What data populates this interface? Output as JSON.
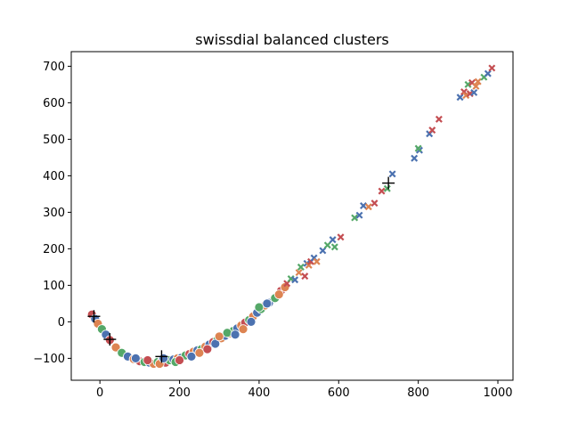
{
  "chart_data": {
    "type": "scatter",
    "title": "swissdial balanced clusters",
    "xlabel": "",
    "ylabel": "",
    "xlim": [
      -72,
      1038
    ],
    "ylim": [
      -160,
      740
    ],
    "xticks": [
      0,
      200,
      400,
      600,
      800,
      1000
    ],
    "yticks": [
      -100,
      0,
      100,
      200,
      300,
      400,
      500,
      600,
      700
    ],
    "xtick_labels": [
      "0",
      "200",
      "400",
      "600",
      "800",
      "1000"
    ],
    "ytick_labels": [
      "−100",
      "0",
      "100",
      "200",
      "300",
      "400",
      "500",
      "600",
      "700"
    ],
    "grid": false,
    "colors": {
      "blue": "#4c72b0",
      "orange": "#dd8452",
      "green": "#55a868",
      "red": "#c44e52"
    },
    "circle_points": [
      {
        "x": -20,
        "y": 20,
        "c": "red"
      },
      {
        "x": -12,
        "y": 8,
        "c": "blue"
      },
      {
        "x": -5,
        "y": -5,
        "c": "orange"
      },
      {
        "x": 5,
        "y": -20,
        "c": "green"
      },
      {
        "x": 15,
        "y": -35,
        "c": "blue"
      },
      {
        "x": 25,
        "y": -50,
        "c": "red"
      },
      {
        "x": 40,
        "y": -70,
        "c": "orange"
      },
      {
        "x": 55,
        "y": -85,
        "c": "green"
      },
      {
        "x": 70,
        "y": -95,
        "c": "blue"
      },
      {
        "x": 85,
        "y": -102,
        "c": "orange"
      },
      {
        "x": 100,
        "y": -108,
        "c": "red"
      },
      {
        "x": 112,
        "y": -110,
        "c": "green"
      },
      {
        "x": 125,
        "y": -112,
        "c": "blue"
      },
      {
        "x": 135,
        "y": -115,
        "c": "orange"
      },
      {
        "x": 145,
        "y": -110,
        "c": "green"
      },
      {
        "x": 155,
        "y": -108,
        "c": "blue"
      },
      {
        "x": 165,
        "y": -112,
        "c": "red"
      },
      {
        "x": 175,
        "y": -105,
        "c": "green"
      },
      {
        "x": 185,
        "y": -103,
        "c": "blue"
      },
      {
        "x": 195,
        "y": -100,
        "c": "orange"
      },
      {
        "x": 205,
        "y": -98,
        "c": "blue"
      },
      {
        "x": 215,
        "y": -92,
        "c": "green"
      },
      {
        "x": 225,
        "y": -88,
        "c": "red"
      },
      {
        "x": 235,
        "y": -82,
        "c": "orange"
      },
      {
        "x": 245,
        "y": -78,
        "c": "blue"
      },
      {
        "x": 255,
        "y": -75,
        "c": "green"
      },
      {
        "x": 265,
        "y": -68,
        "c": "orange"
      },
      {
        "x": 275,
        "y": -62,
        "c": "blue"
      },
      {
        "x": 285,
        "y": -55,
        "c": "red"
      },
      {
        "x": 295,
        "y": -50,
        "c": "green"
      },
      {
        "x": 305,
        "y": -45,
        "c": "orange"
      },
      {
        "x": 315,
        "y": -38,
        "c": "blue"
      },
      {
        "x": 325,
        "y": -32,
        "c": "orange"
      },
      {
        "x": 335,
        "y": -25,
        "c": "green"
      },
      {
        "x": 345,
        "y": -18,
        "c": "blue"
      },
      {
        "x": 355,
        "y": -10,
        "c": "orange"
      },
      {
        "x": 365,
        "y": -2,
        "c": "red"
      },
      {
        "x": 375,
        "y": 5,
        "c": "green"
      },
      {
        "x": 385,
        "y": 15,
        "c": "orange"
      },
      {
        "x": 395,
        "y": 25,
        "c": "blue"
      },
      {
        "x": 405,
        "y": 35,
        "c": "green"
      },
      {
        "x": 415,
        "y": 45,
        "c": "orange"
      },
      {
        "x": 425,
        "y": 52,
        "c": "blue"
      },
      {
        "x": 440,
        "y": 65,
        "c": "green"
      },
      {
        "x": 455,
        "y": 85,
        "c": "red"
      },
      {
        "x": 465,
        "y": 95,
        "c": "orange"
      },
      {
        "x": 90,
        "y": -100,
        "c": "blue"
      },
      {
        "x": 120,
        "y": -105,
        "c": "red"
      },
      {
        "x": 150,
        "y": -115,
        "c": "orange"
      },
      {
        "x": 160,
        "y": -100,
        "c": "blue"
      },
      {
        "x": 190,
        "y": -110,
        "c": "green"
      },
      {
        "x": 200,
        "y": -105,
        "c": "red"
      },
      {
        "x": 230,
        "y": -95,
        "c": "blue"
      },
      {
        "x": 250,
        "y": -85,
        "c": "orange"
      },
      {
        "x": 270,
        "y": -75,
        "c": "red"
      },
      {
        "x": 290,
        "y": -60,
        "c": "blue"
      },
      {
        "x": 300,
        "y": -40,
        "c": "orange"
      },
      {
        "x": 320,
        "y": -30,
        "c": "green"
      },
      {
        "x": 340,
        "y": -35,
        "c": "blue"
      },
      {
        "x": 360,
        "y": -20,
        "c": "orange"
      },
      {
        "x": 380,
        "y": 0,
        "c": "blue"
      },
      {
        "x": 400,
        "y": 40,
        "c": "green"
      },
      {
        "x": 420,
        "y": 50,
        "c": "blue"
      },
      {
        "x": 450,
        "y": 75,
        "c": "orange"
      }
    ],
    "cross_points": [
      {
        "x": 470,
        "y": 105,
        "c": "red"
      },
      {
        "x": 480,
        "y": 118,
        "c": "green"
      },
      {
        "x": 490,
        "y": 115,
        "c": "blue"
      },
      {
        "x": 500,
        "y": 135,
        "c": "orange"
      },
      {
        "x": 505,
        "y": 150,
        "c": "green"
      },
      {
        "x": 515,
        "y": 125,
        "c": "red"
      },
      {
        "x": 520,
        "y": 160,
        "c": "blue"
      },
      {
        "x": 525,
        "y": 155,
        "c": "orange"
      },
      {
        "x": 530,
        "y": 165,
        "c": "red"
      },
      {
        "x": 538,
        "y": 175,
        "c": "blue"
      },
      {
        "x": 545,
        "y": 165,
        "c": "orange"
      },
      {
        "x": 560,
        "y": 195,
        "c": "blue"
      },
      {
        "x": 572,
        "y": 210,
        "c": "green"
      },
      {
        "x": 585,
        "y": 225,
        "c": "blue"
      },
      {
        "x": 590,
        "y": 205,
        "c": "green"
      },
      {
        "x": 605,
        "y": 232,
        "c": "red"
      },
      {
        "x": 640,
        "y": 285,
        "c": "green"
      },
      {
        "x": 652,
        "y": 292,
        "c": "blue"
      },
      {
        "x": 662,
        "y": 318,
        "c": "blue"
      },
      {
        "x": 675,
        "y": 315,
        "c": "orange"
      },
      {
        "x": 690,
        "y": 325,
        "c": "red"
      },
      {
        "x": 708,
        "y": 358,
        "c": "red"
      },
      {
        "x": 722,
        "y": 365,
        "c": "green"
      },
      {
        "x": 735,
        "y": 405,
        "c": "blue"
      },
      {
        "x": 790,
        "y": 448,
        "c": "blue"
      },
      {
        "x": 803,
        "y": 470,
        "c": "blue"
      },
      {
        "x": 800,
        "y": 475,
        "c": "green"
      },
      {
        "x": 828,
        "y": 515,
        "c": "blue"
      },
      {
        "x": 835,
        "y": 525,
        "c": "red"
      },
      {
        "x": 852,
        "y": 555,
        "c": "red"
      },
      {
        "x": 905,
        "y": 615,
        "c": "blue"
      },
      {
        "x": 915,
        "y": 630,
        "c": "red"
      },
      {
        "x": 920,
        "y": 620,
        "c": "orange"
      },
      {
        "x": 925,
        "y": 650,
        "c": "green"
      },
      {
        "x": 930,
        "y": 625,
        "c": "red"
      },
      {
        "x": 935,
        "y": 655,
        "c": "red"
      },
      {
        "x": 940,
        "y": 628,
        "c": "blue"
      },
      {
        "x": 945,
        "y": 645,
        "c": "orange"
      },
      {
        "x": 950,
        "y": 658,
        "c": "orange"
      },
      {
        "x": 965,
        "y": 670,
        "c": "green"
      },
      {
        "x": 975,
        "y": 680,
        "c": "blue"
      },
      {
        "x": 985,
        "y": 695,
        "c": "red"
      }
    ],
    "centroids": [
      {
        "x": -15,
        "y": 15
      },
      {
        "x": 25,
        "y": -48
      },
      {
        "x": 155,
        "y": -95
      },
      {
        "x": 725,
        "y": 380
      }
    ]
  }
}
